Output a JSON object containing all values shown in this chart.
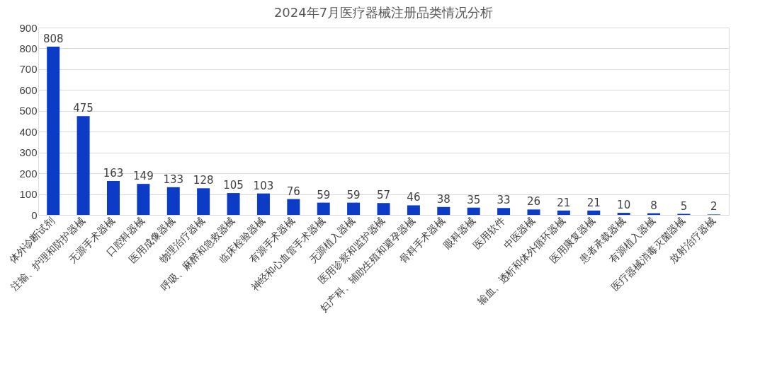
{
  "chart_data": {
    "type": "bar",
    "title": "2024年7月医疗器械注册品类情况分析",
    "categories": [
      "体外诊断试剂",
      "注输、护理和防护器械",
      "无源手术器械",
      "口腔科器械",
      "医用成像器械",
      "物理治疗器械",
      "呼吸、麻醉和急救器械",
      "临床检验器械",
      "有源手术器械",
      "神经和心血管手术器械",
      "无源植入器械",
      "医用诊察和监护器械",
      "妇产科、辅助生殖和避孕器械",
      "骨科手术器械",
      "眼科器械",
      "医用软件",
      "中医器械",
      "输血、透析和体外循环器械",
      "医用康复器械",
      "患者承载器械",
      "有源植入器械",
      "医疗器械消毒灭菌器械",
      "放射治疗器械"
    ],
    "values": [
      808,
      475,
      163,
      149,
      133,
      128,
      105,
      103,
      76,
      59,
      59,
      57,
      46,
      38,
      35,
      33,
      26,
      21,
      21,
      10,
      8,
      5,
      2
    ],
    "color": "#0c3cc6",
    "ylim": [
      0,
      900
    ],
    "yticks": [
      0,
      100,
      200,
      300,
      400,
      500,
      600,
      700,
      800,
      900
    ],
    "grid": "y",
    "data_labels": true
  }
}
